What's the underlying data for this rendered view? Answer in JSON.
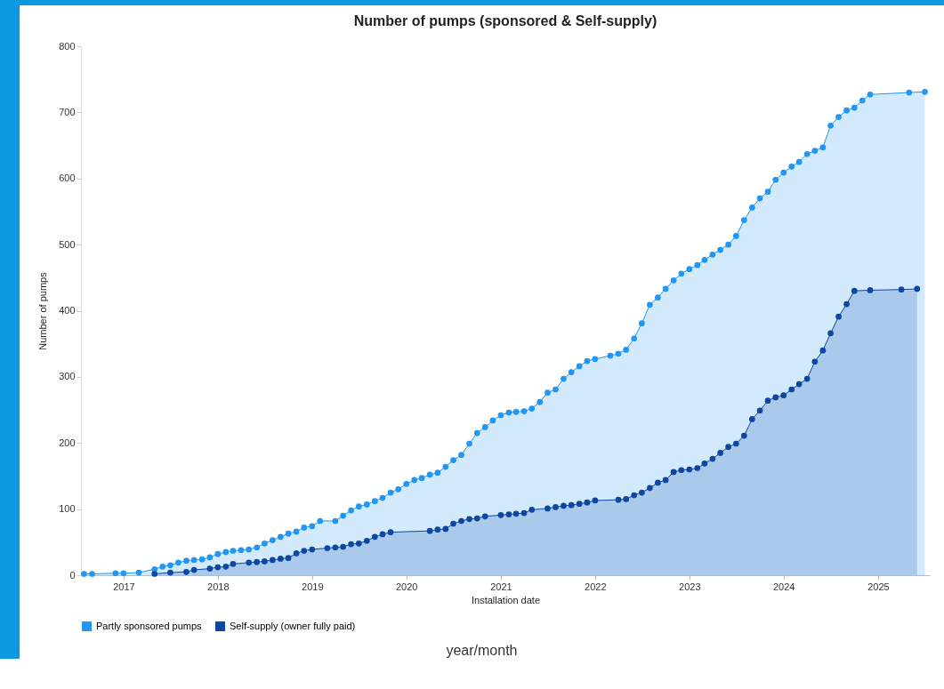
{
  "chart_data": {
    "type": "area",
    "title": "Number of pumps (sponsored & Self-supply)",
    "xlabel": "Installation date",
    "ylabel": "Number of pumps",
    "annotations": [
      "year/month"
    ],
    "xlim": [
      "2016-07-20",
      "2025-07-20"
    ],
    "xticks": [
      "2017",
      "2018",
      "2019",
      "2020",
      "2021",
      "2022",
      "2023",
      "2024",
      "2025"
    ],
    "ylim": [
      0,
      800
    ],
    "yticks": [
      0,
      100,
      200,
      300,
      400,
      500,
      600,
      700,
      800
    ],
    "grid": false,
    "legend": "bottom",
    "marker": "circle",
    "line_style": "solid",
    "series": [
      {
        "name": "Partly sponsored pumps",
        "color": "#2196f3",
        "x": [
          "2016-08",
          "2016-09",
          "2016-12",
          "2017-01",
          "2017-03",
          "2017-05",
          "2017-06",
          "2017-07",
          "2017-08",
          "2017-09",
          "2017-10",
          "2017-11",
          "2017-12",
          "2018-01",
          "2018-02",
          "2018-03",
          "2018-04",
          "2018-05",
          "2018-06",
          "2018-07",
          "2018-08",
          "2018-09",
          "2018-10",
          "2018-11",
          "2018-12",
          "2019-01",
          "2019-02",
          "2019-04",
          "2019-05",
          "2019-06",
          "2019-07",
          "2019-08",
          "2019-09",
          "2019-10",
          "2019-11",
          "2019-12",
          "2020-01",
          "2020-02",
          "2020-03",
          "2020-04",
          "2020-05",
          "2020-06",
          "2020-07",
          "2020-08",
          "2020-09",
          "2020-10",
          "2020-11",
          "2020-12",
          "2021-01",
          "2021-02",
          "2021-03",
          "2021-04",
          "2021-05",
          "2021-06",
          "2021-07",
          "2021-08",
          "2021-09",
          "2021-10",
          "2021-11",
          "2021-12",
          "2022-01",
          "2022-03",
          "2022-04",
          "2022-05",
          "2022-06",
          "2022-07",
          "2022-08",
          "2022-09",
          "2022-10",
          "2022-11",
          "2022-12",
          "2023-01",
          "2023-02",
          "2023-03",
          "2023-04",
          "2023-05",
          "2023-06",
          "2023-07",
          "2023-08",
          "2023-09",
          "2023-10",
          "2023-11",
          "2023-12",
          "2024-01",
          "2024-02",
          "2024-03",
          "2024-04",
          "2024-05",
          "2024-06",
          "2024-07",
          "2024-08",
          "2024-09",
          "2024-10",
          "2024-11",
          "2024-12",
          "2025-05",
          "2025-07"
        ],
        "values": [
          2,
          2,
          3,
          3,
          4,
          9,
          13,
          15,
          19,
          22,
          23,
          24,
          27,
          32,
          35,
          37,
          38,
          39,
          42,
          48,
          53,
          58,
          63,
          66,
          72,
          74,
          82,
          82,
          90,
          98,
          104,
          107,
          112,
          117,
          125,
          130,
          138,
          144,
          147,
          152,
          155,
          164,
          174,
          182,
          199,
          215,
          224,
          234,
          242,
          246,
          247,
          248,
          252,
          262,
          276,
          281,
          297,
          307,
          316,
          324,
          327,
          332,
          335,
          341,
          358,
          381,
          409,
          420,
          433,
          446,
          456,
          463,
          469,
          477,
          485,
          492,
          500,
          513,
          537,
          556,
          570,
          580,
          598,
          609,
          618,
          625,
          637,
          642,
          647,
          680,
          693,
          703,
          707,
          718,
          727,
          730,
          731
        ]
      },
      {
        "name": "Self-supply (owner fully paid)",
        "color": "#0d47a1",
        "x": [
          "2017-05",
          "2017-07",
          "2017-09",
          "2017-10",
          "2017-12",
          "2018-01",
          "2018-02",
          "2018-03",
          "2018-05",
          "2018-06",
          "2018-07",
          "2018-08",
          "2018-09",
          "2018-10",
          "2018-11",
          "2018-12",
          "2019-01",
          "2019-03",
          "2019-04",
          "2019-05",
          "2019-06",
          "2019-07",
          "2019-08",
          "2019-09",
          "2019-10",
          "2019-11",
          "2020-04",
          "2020-05",
          "2020-06",
          "2020-07",
          "2020-08",
          "2020-09",
          "2020-10",
          "2020-11",
          "2021-01",
          "2021-02",
          "2021-03",
          "2021-04",
          "2021-05",
          "2021-07",
          "2021-08",
          "2021-09",
          "2021-10",
          "2021-11",
          "2021-12",
          "2022-01",
          "2022-04",
          "2022-05",
          "2022-06",
          "2022-07",
          "2022-08",
          "2022-09",
          "2022-10",
          "2022-11",
          "2022-12",
          "2023-01",
          "2023-02",
          "2023-03",
          "2023-04",
          "2023-05",
          "2023-06",
          "2023-07",
          "2023-08",
          "2023-09",
          "2023-10",
          "2023-11",
          "2023-12",
          "2024-01",
          "2024-02",
          "2024-03",
          "2024-04",
          "2024-05",
          "2024-06",
          "2024-07",
          "2024-08",
          "2024-09",
          "2024-10",
          "2024-12",
          "2025-04",
          "2025-06"
        ],
        "values": [
          2,
          4,
          5,
          8,
          10,
          12,
          13,
          17,
          19,
          20,
          21,
          23,
          25,
          26,
          33,
          37,
          39,
          41,
          42,
          43,
          47,
          48,
          52,
          58,
          62,
          65,
          67,
          69,
          70,
          78,
          82,
          85,
          86,
          89,
          91,
          92,
          93,
          94,
          99,
          101,
          103,
          105,
          106,
          108,
          110,
          113,
          114,
          115,
          121,
          125,
          132,
          140,
          144,
          156,
          159,
          160,
          162,
          169,
          176,
          185,
          194,
          199,
          211,
          236,
          249,
          264,
          269,
          272,
          281,
          289,
          297,
          323,
          340,
          366,
          391,
          410,
          430,
          431,
          432,
          433
        ]
      }
    ]
  }
}
